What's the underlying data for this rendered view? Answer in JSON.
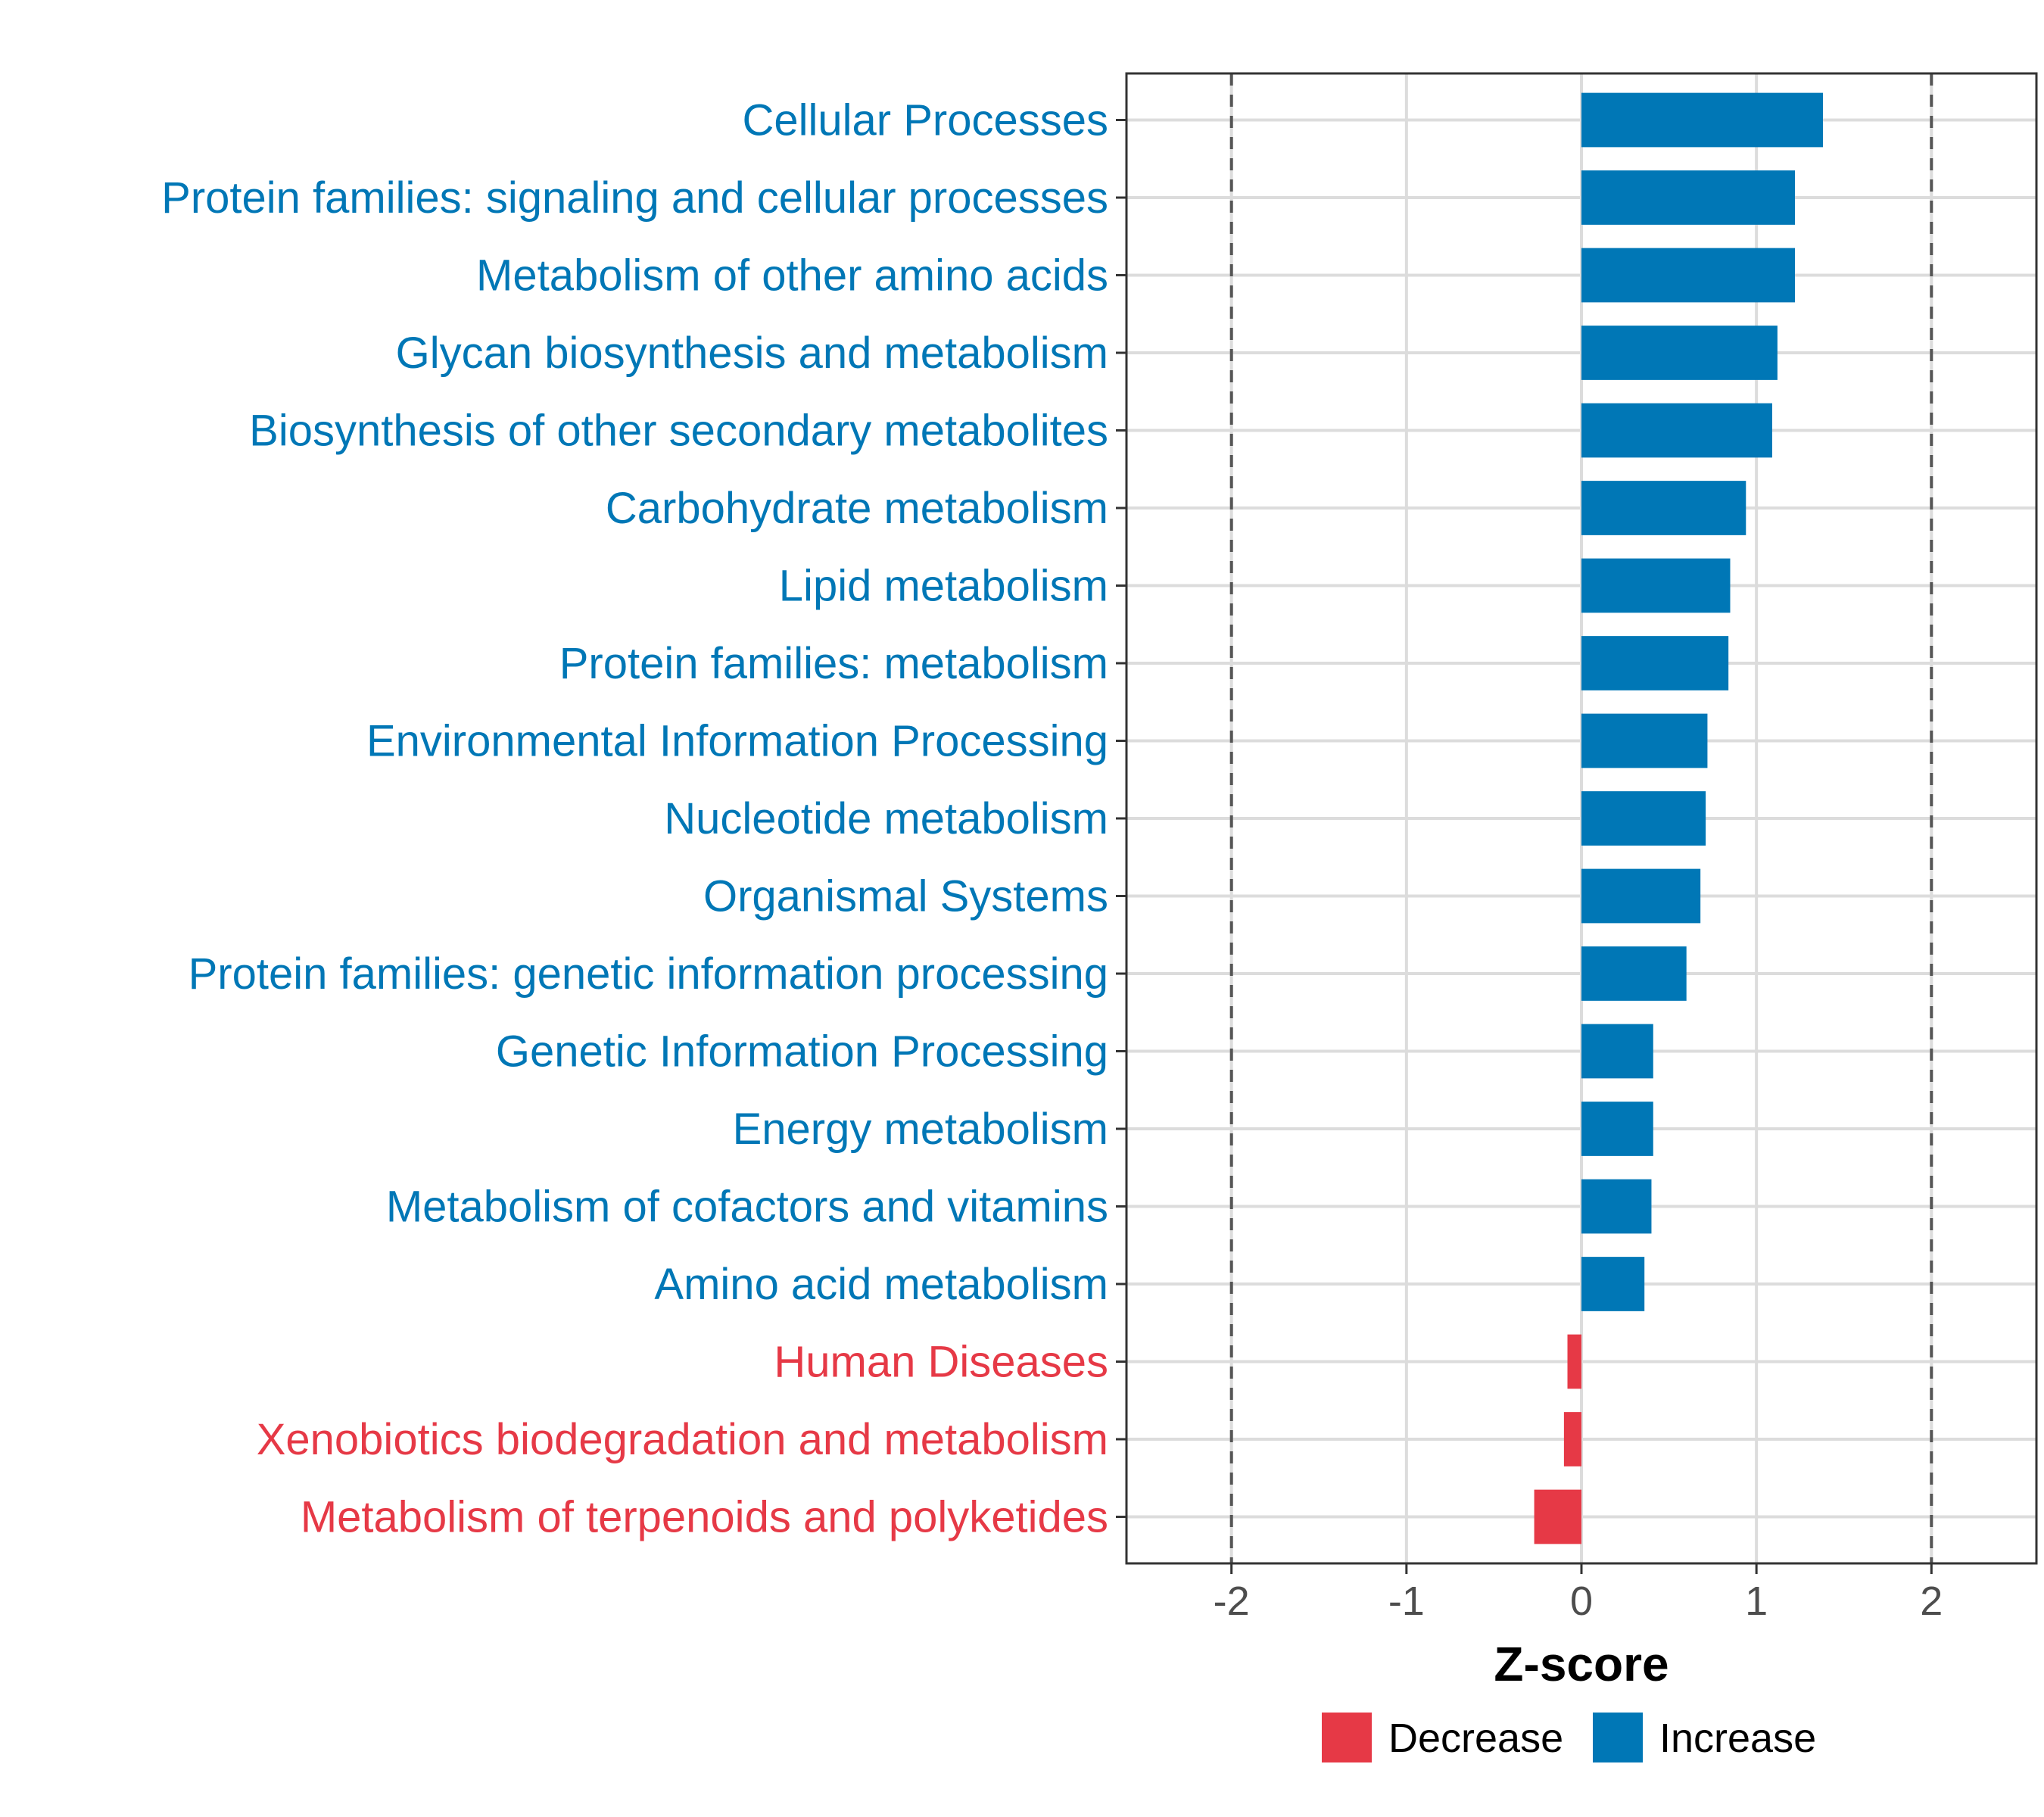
{
  "chart_data": {
    "type": "bar",
    "orientation": "horizontal",
    "title": "",
    "xlabel": "Z-score",
    "ylabel": "",
    "xlim": [
      -2.6,
      2.6
    ],
    "xticks": [
      -2,
      -1,
      0,
      1,
      2
    ],
    "xtick_labels": [
      "-2",
      "-1",
      "0",
      "1",
      "2"
    ],
    "reference_lines": [
      -2,
      2
    ],
    "grid": true,
    "categories": [
      "Cellular Processes",
      "Protein families: signaling and cellular processes",
      "Metabolism of other amino acids",
      "Glycan biosynthesis and metabolism",
      "Biosynthesis of other secondary metabolites",
      "Carbohydrate metabolism",
      "Lipid metabolism",
      "Protein families: metabolism",
      "Environmental Information Processing",
      "Nucleotide metabolism",
      "Organismal Systems",
      "Protein families: genetic information processing",
      "Genetic Information Processing",
      "Energy metabolism",
      "Metabolism of cofactors and vitamins",
      "Amino acid metabolism",
      "Human Diseases",
      "Xenobiotics biodegradation and metabolism",
      "Metabolism of terpenoids and polyketides"
    ],
    "values": [
      1.38,
      1.22,
      1.22,
      1.12,
      1.09,
      0.94,
      0.85,
      0.84,
      0.72,
      0.71,
      0.68,
      0.6,
      0.41,
      0.41,
      0.4,
      0.36,
      -0.08,
      -0.1,
      -0.27
    ],
    "groups": [
      "Increase",
      "Increase",
      "Increase",
      "Increase",
      "Increase",
      "Increase",
      "Increase",
      "Increase",
      "Increase",
      "Increase",
      "Increase",
      "Increase",
      "Increase",
      "Increase",
      "Increase",
      "Increase",
      "Decrease",
      "Decrease",
      "Decrease"
    ],
    "legend": {
      "position": "bottom",
      "entries": [
        {
          "label": "Decrease",
          "color": "#e63946"
        },
        {
          "label": "Increase",
          "color": "#0077b6"
        }
      ]
    }
  }
}
